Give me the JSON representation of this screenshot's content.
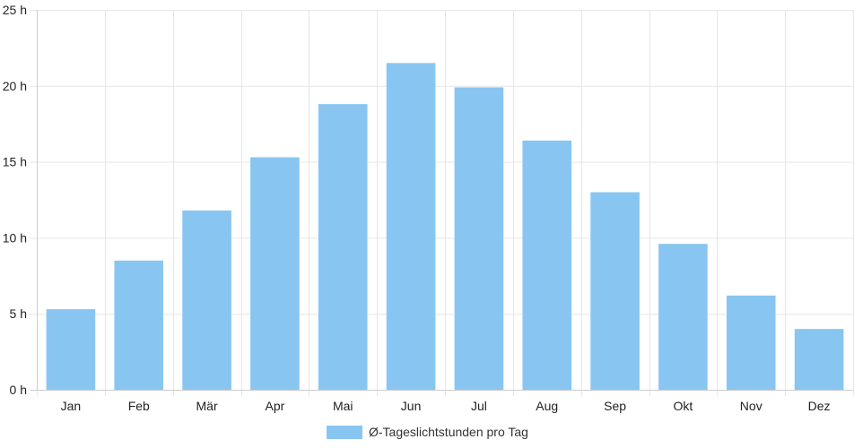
{
  "chart_data": {
    "type": "bar",
    "categories": [
      "Jan",
      "Feb",
      "Mär",
      "Apr",
      "Mai",
      "Jun",
      "Jul",
      "Aug",
      "Sep",
      "Okt",
      "Nov",
      "Dez"
    ],
    "series": [
      {
        "name": "Ø-Tageslichtstunden pro Tag",
        "values": [
          5.3,
          8.5,
          11.8,
          15.3,
          18.8,
          21.5,
          19.9,
          16.4,
          13.0,
          9.6,
          6.2,
          4.0
        ],
        "color": "#88c6f1"
      }
    ],
    "y_ticks": [
      "0 h",
      "5 h",
      "10 h",
      "15 h",
      "20 h",
      "25 h"
    ],
    "ylim": [
      0,
      25
    ],
    "grid": true,
    "legend_position": "bottom-center",
    "colors": {
      "grid": "#e6e6e6",
      "axis": "#cccccc",
      "text": "#222222"
    }
  }
}
